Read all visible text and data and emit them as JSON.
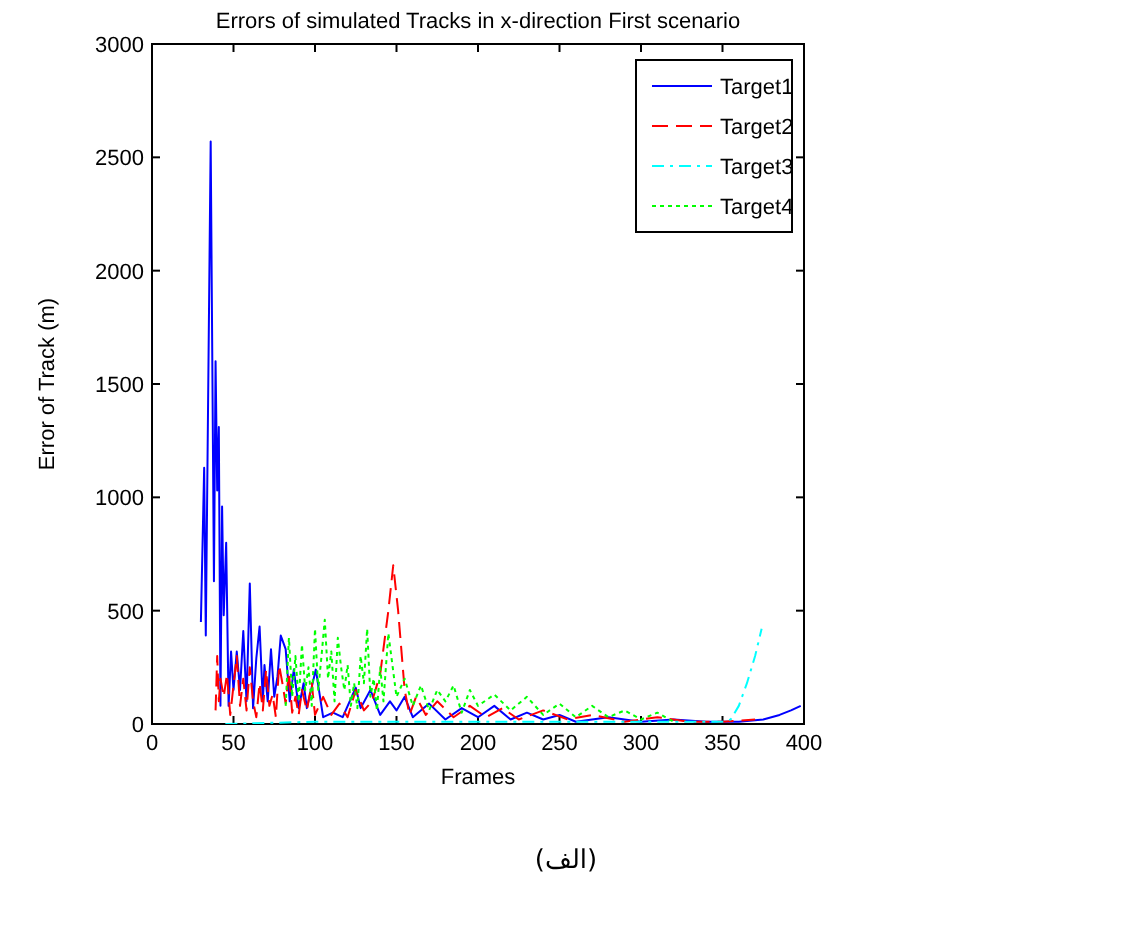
{
  "chart_data": {
    "type": "line",
    "title": "Errors of simulated Tracks in x-direction First scenario",
    "xlabel": "Frames",
    "ylabel": "Error of Track (m)",
    "xlim": [
      0,
      400
    ],
    "xticks": [
      0,
      50,
      100,
      150,
      200,
      250,
      300,
      350,
      400
    ],
    "ylim": [
      0,
      3000
    ],
    "yticks": [
      0,
      500,
      1000,
      1500,
      2000,
      2500,
      3000
    ],
    "grid": false,
    "legend": "top right",
    "marker": "none",
    "series": [
      {
        "name": "Target1",
        "color": "#0000ff",
        "line_style": "solid",
        "x": [
          30,
          32,
          33,
          36,
          38,
          39,
          40,
          41,
          42,
          43,
          44,
          45.5,
          47,
          48.5,
          50,
          52,
          54,
          56,
          58,
          60,
          62,
          64,
          66,
          68,
          69,
          71,
          73,
          75,
          77,
          79,
          82,
          84.5,
          87,
          90,
          93,
          95,
          100.5,
          105,
          111,
          117,
          125,
          128,
          134,
          140,
          146,
          150,
          155,
          160,
          170,
          180,
          190,
          200,
          210,
          220,
          230,
          240,
          250,
          260,
          280,
          300,
          320,
          340,
          360,
          375,
          385,
          392,
          398
        ],
        "values": [
          450,
          1130,
          390,
          2570,
          630,
          1600,
          1030,
          1310,
          80,
          960,
          480,
          800,
          80,
          320,
          150,
          320,
          150,
          410,
          100,
          620,
          70,
          290,
          430,
          100,
          260,
          100,
          330,
          120,
          210,
          390,
          330,
          100,
          240,
          70,
          180,
          70,
          240,
          30,
          50,
          30,
          160,
          70,
          150,
          40,
          100,
          60,
          120,
          30,
          90,
          20,
          70,
          30,
          80,
          20,
          50,
          20,
          40,
          10,
          30,
          10,
          20,
          10,
          10,
          20,
          40,
          60,
          80
        ]
      },
      {
        "name": "Target2",
        "color": "#ff0000",
        "line_style": "dashed",
        "x": [
          39,
          40,
          41,
          42,
          44,
          46,
          48,
          50,
          52,
          54,
          56,
          58,
          60,
          62,
          64,
          66,
          68,
          70,
          72,
          74,
          76,
          78,
          80,
          82,
          84,
          86,
          88,
          90,
          92,
          95,
          98,
          100,
          105,
          110,
          115,
          120,
          125,
          130,
          135,
          140,
          145,
          148,
          151,
          155,
          158,
          162,
          168,
          175,
          185,
          195,
          205,
          215,
          225,
          240,
          255,
          270,
          290,
          310,
          330,
          350,
          370
        ],
        "values": [
          60,
          300,
          100,
          200,
          120,
          220,
          40,
          170,
          300,
          80,
          200,
          60,
          250,
          100,
          30,
          180,
          60,
          240,
          80,
          130,
          30,
          260,
          180,
          90,
          230,
          50,
          120,
          40,
          150,
          60,
          180,
          40,
          120,
          40,
          90,
          30,
          150,
          60,
          100,
          220,
          500,
          700,
          500,
          150,
          40,
          120,
          40,
          100,
          30,
          80,
          30,
          70,
          20,
          60,
          20,
          40,
          10,
          30,
          10,
          10,
          20
        ]
      },
      {
        "name": "Target3",
        "color": "#00ffff",
        "line_style": "dashdot",
        "x": [
          45,
          100,
          200,
          300,
          350,
          355,
          360,
          365,
          370,
          374
        ],
        "values": [
          0,
          10,
          10,
          10,
          10,
          20,
          80,
          180,
          300,
          420
        ]
      },
      {
        "name": "Target4",
        "color": "#00ff00",
        "line_style": "dotted",
        "x": [
          82,
          84,
          86,
          88,
          90,
          92,
          94,
          96,
          98,
          100,
          102,
          104,
          106,
          108,
          110,
          112,
          114,
          116,
          118,
          120,
          122,
          124,
          126,
          128,
          130,
          132,
          134,
          136,
          138,
          140,
          142,
          145,
          150,
          155,
          160,
          165,
          170,
          175,
          180,
          185,
          190,
          195,
          200,
          210,
          220,
          230,
          240,
          250,
          260,
          270,
          280,
          290,
          300,
          310,
          320
        ],
        "values": [
          80,
          380,
          120,
          300,
          100,
          350,
          150,
          250,
          80,
          420,
          150,
          300,
          460,
          200,
          320,
          100,
          380,
          250,
          150,
          260,
          80,
          180,
          70,
          300,
          180,
          420,
          120,
          200,
          60,
          250,
          100,
          400,
          120,
          200,
          80,
          170,
          60,
          150,
          100,
          170,
          50,
          150,
          80,
          130,
          60,
          120,
          40,
          90,
          30,
          80,
          30,
          60,
          20,
          50,
          10
        ]
      }
    ],
    "annotations": [
      "(الف)"
    ]
  }
}
